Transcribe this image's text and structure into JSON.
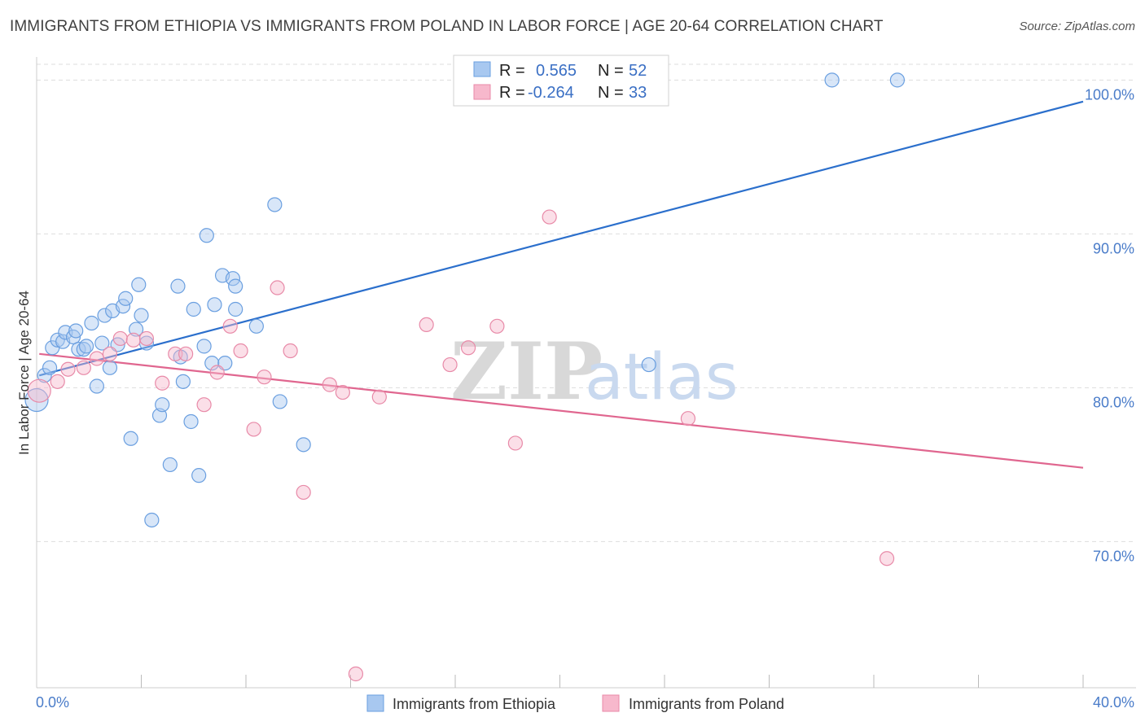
{
  "title": "IMMIGRANTS FROM ETHIOPIA VS IMMIGRANTS FROM POLAND IN LABOR FORCE | AGE 20-64 CORRELATION CHART",
  "source": "Source: ZipAtlas.com",
  "watermark": {
    "zip": "ZIP",
    "atlas": "atlas"
  },
  "colors": {
    "ethiopia_fill": "#a8c8f0",
    "ethiopia_stroke": "#6a9fe0",
    "ethiopia_line": "#2b6fcc",
    "poland_fill": "#f7b8cc",
    "poland_stroke": "#e88aa8",
    "poland_line": "#e0668f",
    "tick_text": "#4a7cc9",
    "grid": "#dddddd"
  },
  "legend": {
    "r_label": "R =",
    "n_label": "N =",
    "ethiopia": {
      "r": "0.565",
      "n": "52"
    },
    "poland": {
      "r": "-0.264",
      "n": "33"
    }
  },
  "chart_data": {
    "type": "scatter",
    "title": "IMMIGRANTS FROM ETHIOPIA VS IMMIGRANTS FROM POLAND IN LABOR FORCE | AGE 20-64 CORRELATION CHART",
    "xlabel": "",
    "ylabel": "In Labor Force | Age 20-64",
    "xlim": [
      0,
      40
    ],
    "ylim": [
      60.5,
      101.5
    ],
    "x_tick_labels": [
      "0.0%",
      "40.0%"
    ],
    "y_ticks": [
      70,
      80,
      90,
      100
    ],
    "y_tick_labels": [
      "70.0%",
      "80.0%",
      "90.0%",
      "100.0%"
    ],
    "grid": true,
    "series": [
      {
        "name": "Immigrants from Ethiopia",
        "r": 0.565,
        "n": 52,
        "trend": {
          "x": [
            0.1,
            40
          ],
          "y": [
            80.8,
            98.6
          ]
        },
        "points": [
          {
            "x": 0.0,
            "y": 79.2,
            "big": true
          },
          {
            "x": 0.3,
            "y": 80.8
          },
          {
            "x": 0.5,
            "y": 81.3
          },
          {
            "x": 0.6,
            "y": 82.6
          },
          {
            "x": 0.8,
            "y": 83.1
          },
          {
            "x": 1.0,
            "y": 83.0
          },
          {
            "x": 1.1,
            "y": 83.6
          },
          {
            "x": 1.4,
            "y": 83.3
          },
          {
            "x": 1.5,
            "y": 83.7
          },
          {
            "x": 1.6,
            "y": 82.5
          },
          {
            "x": 1.8,
            "y": 82.5
          },
          {
            "x": 1.9,
            "y": 82.7
          },
          {
            "x": 2.1,
            "y": 84.2
          },
          {
            "x": 2.3,
            "y": 80.1
          },
          {
            "x": 2.5,
            "y": 82.9
          },
          {
            "x": 2.6,
            "y": 84.7
          },
          {
            "x": 2.8,
            "y": 81.3
          },
          {
            "x": 2.9,
            "y": 85.0
          },
          {
            "x": 3.1,
            "y": 82.8
          },
          {
            "x": 3.3,
            "y": 85.3
          },
          {
            "x": 3.4,
            "y": 85.8
          },
          {
            "x": 3.6,
            "y": 76.7
          },
          {
            "x": 3.8,
            "y": 83.8
          },
          {
            "x": 3.9,
            "y": 86.7
          },
          {
            "x": 4.0,
            "y": 84.7
          },
          {
            "x": 4.2,
            "y": 82.9
          },
          {
            "x": 4.4,
            "y": 71.4
          },
          {
            "x": 4.7,
            "y": 78.2
          },
          {
            "x": 4.8,
            "y": 78.9
          },
          {
            "x": 5.1,
            "y": 75.0
          },
          {
            "x": 5.4,
            "y": 86.6
          },
          {
            "x": 5.5,
            "y": 82.0
          },
          {
            "x": 5.6,
            "y": 80.4
          },
          {
            "x": 5.9,
            "y": 77.8
          },
          {
            "x": 6.0,
            "y": 85.1
          },
          {
            "x": 6.2,
            "y": 74.3
          },
          {
            "x": 6.4,
            "y": 82.7
          },
          {
            "x": 6.5,
            "y": 89.9
          },
          {
            "x": 6.7,
            "y": 81.6
          },
          {
            "x": 6.8,
            "y": 85.4
          },
          {
            "x": 7.1,
            "y": 87.3
          },
          {
            "x": 7.2,
            "y": 81.6
          },
          {
            "x": 7.5,
            "y": 87.1
          },
          {
            "x": 7.6,
            "y": 85.1
          },
          {
            "x": 7.6,
            "y": 86.6
          },
          {
            "x": 8.4,
            "y": 84.0
          },
          {
            "x": 9.1,
            "y": 91.9
          },
          {
            "x": 9.3,
            "y": 79.1
          },
          {
            "x": 10.2,
            "y": 76.3
          },
          {
            "x": 23.4,
            "y": 81.5
          },
          {
            "x": 30.4,
            "y": 100.0
          },
          {
            "x": 32.9,
            "y": 100.0
          }
        ]
      },
      {
        "name": "Immigrants from Poland",
        "r": -0.264,
        "n": 33,
        "trend": {
          "x": [
            0.1,
            40
          ],
          "y": [
            82.2,
            74.8
          ]
        },
        "points": [
          {
            "x": 0.1,
            "y": 79.8,
            "big": true
          },
          {
            "x": 0.8,
            "y": 80.4
          },
          {
            "x": 1.2,
            "y": 81.2
          },
          {
            "x": 1.8,
            "y": 81.3
          },
          {
            "x": 2.3,
            "y": 81.9
          },
          {
            "x": 2.8,
            "y": 82.2
          },
          {
            "x": 3.2,
            "y": 83.2
          },
          {
            "x": 3.7,
            "y": 83.1
          },
          {
            "x": 4.2,
            "y": 83.2
          },
          {
            "x": 4.8,
            "y": 80.3
          },
          {
            "x": 5.3,
            "y": 82.2
          },
          {
            "x": 5.7,
            "y": 82.2
          },
          {
            "x": 6.4,
            "y": 78.9
          },
          {
            "x": 6.9,
            "y": 81.0
          },
          {
            "x": 7.4,
            "y": 84.0
          },
          {
            "x": 7.8,
            "y": 82.4
          },
          {
            "x": 8.3,
            "y": 77.3
          },
          {
            "x": 8.7,
            "y": 80.7
          },
          {
            "x": 9.2,
            "y": 86.5
          },
          {
            "x": 9.7,
            "y": 82.4
          },
          {
            "x": 10.2,
            "y": 73.2
          },
          {
            "x": 11.2,
            "y": 80.2
          },
          {
            "x": 11.7,
            "y": 79.7
          },
          {
            "x": 12.2,
            "y": 61.4
          },
          {
            "x": 13.1,
            "y": 79.4
          },
          {
            "x": 14.9,
            "y": 84.1
          },
          {
            "x": 15.8,
            "y": 81.5
          },
          {
            "x": 16.5,
            "y": 82.6
          },
          {
            "x": 17.6,
            "y": 84.0
          },
          {
            "x": 18.3,
            "y": 76.4
          },
          {
            "x": 19.6,
            "y": 91.1
          },
          {
            "x": 24.9,
            "y": 78.0
          },
          {
            "x": 32.5,
            "y": 68.9
          }
        ]
      }
    ]
  },
  "bottom_legend": [
    "Immigrants from Ethiopia",
    "Immigrants from Poland"
  ]
}
